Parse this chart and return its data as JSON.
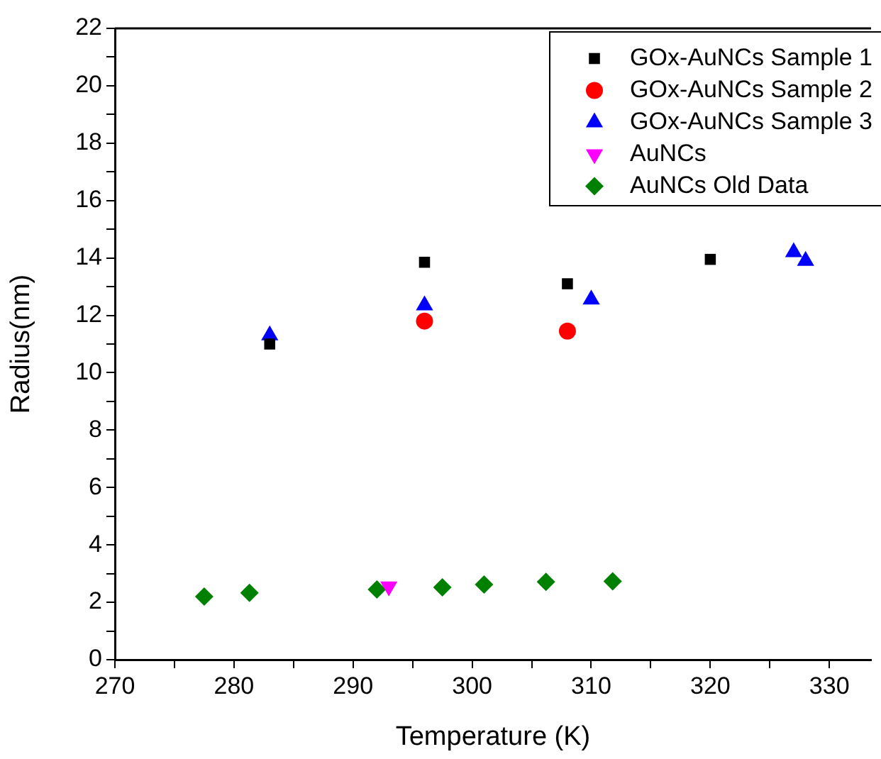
{
  "chart_data": {
    "type": "scatter",
    "xlabel": "Temperature (K)",
    "ylabel": "Radius(nm)",
    "xlim": [
      270,
      333.5
    ],
    "ylim": [
      0,
      22
    ],
    "xticks": [
      270,
      {
        "value": 275,
        "label": null
      },
      280,
      {
        "value": 285,
        "label": null
      },
      290,
      {
        "value": 295,
        "label": null
      },
      300,
      {
        "value": 305,
        "label": null
      },
      310,
      {
        "value": 315,
        "label": null
      },
      320,
      {
        "value": 325,
        "label": null
      },
      330
    ],
    "yticks": [
      0,
      {
        "value": 1,
        "label": null
      },
      2,
      {
        "value": 3,
        "label": null
      },
      4,
      {
        "value": 5,
        "label": null
      },
      6,
      {
        "value": 7,
        "label": null
      },
      8,
      {
        "value": 9,
        "label": null
      },
      10,
      {
        "value": 11,
        "label": null
      },
      12,
      {
        "value": 13,
        "label": null
      },
      14,
      {
        "value": 15,
        "label": null
      },
      16,
      {
        "value": 17,
        "label": null
      },
      18,
      {
        "value": 19,
        "label": null
      },
      20,
      {
        "value": 21,
        "label": null
      },
      22
    ],
    "grid": false,
    "legend": "top right",
    "series": [
      {
        "name": "GOx-AuNCs Sample 1",
        "color": "#000000",
        "marker": "square",
        "x": [
          283,
          296,
          308,
          320
        ],
        "values": [
          11.0,
          13.85,
          13.1,
          13.95
        ]
      },
      {
        "name": "GOx-AuNCs Sample 2",
        "color": "#ff0000",
        "marker": "circle",
        "x": [
          296,
          308
        ],
        "values": [
          11.8,
          11.45
        ]
      },
      {
        "name": "GOx-AuNCs Sample 3",
        "color": "#0000ff",
        "marker": "triangle",
        "x": [
          283,
          296,
          310,
          327,
          328
        ],
        "values": [
          11.3,
          12.35,
          12.55,
          14.2,
          13.9
        ]
      },
      {
        "name": "AuNCs",
        "color": "#ff00ff",
        "marker": "triangle-down",
        "x": [
          293
        ],
        "values": [
          2.55
        ]
      },
      {
        "name": "AuNCs Old Data",
        "color": "#008000",
        "marker": "diamond",
        "x": [
          277.5,
          281.3,
          292,
          297.5,
          301,
          306.2,
          311.8
        ],
        "values": [
          2.2,
          2.33,
          2.45,
          2.52,
          2.62,
          2.71,
          2.73
        ]
      }
    ]
  }
}
